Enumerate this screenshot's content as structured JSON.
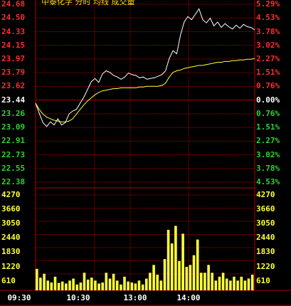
{
  "header_text": "中泰化学 分时 均线 成交量",
  "chart_data": {
    "type": "line",
    "prev_close": 23.44,
    "price_axis": [
      "24.68",
      "24.50",
      "24.33",
      "24.15",
      "23.97",
      "23.79",
      "23.62",
      "23.44",
      "23.26",
      "23.09",
      "22.91",
      "22.73",
      "22.55",
      "22.38"
    ],
    "pct_axis": [
      "5.29%",
      "4.53%",
      "3.78%",
      "3.02%",
      "2.27%",
      "1.51%",
      "0.76%",
      "0.00%",
      "0.76%",
      "1.51%",
      "2.27%",
      "3.02%",
      "3.78%",
      "4.53%"
    ],
    "price_range": [
      22.38,
      24.68
    ],
    "volume_axis": [
      "4270",
      "3660",
      "3050",
      "2440",
      "1830",
      "1220",
      "610"
    ],
    "volume_range": [
      0,
      4880
    ],
    "time_labels": [
      "09:30",
      "10:30",
      "13:00",
      "14:00"
    ],
    "series": [
      {
        "values": [
          23.4,
          23.27,
          23.15,
          23.1,
          23.16,
          23.12,
          23.2,
          23.12,
          23.15,
          23.26,
          23.3,
          23.32,
          23.4,
          23.48,
          23.58,
          23.68,
          23.72,
          23.67,
          23.78,
          23.82,
          23.8,
          23.76,
          23.74,
          23.71,
          23.74,
          23.79,
          23.77,
          23.76,
          23.73,
          23.74,
          23.71,
          23.72,
          23.73,
          23.75,
          23.77,
          23.82,
          23.98,
          24.08,
          24.04,
          24.28,
          24.45,
          24.52,
          24.48,
          24.55,
          24.62,
          24.48,
          24.44,
          24.5,
          24.4,
          24.45,
          24.38,
          24.43,
          24.39,
          24.36,
          24.41,
          24.37,
          24.42,
          24.39,
          24.38,
          24.35
        ]
      },
      {
        "values": [
          23.4,
          23.32,
          23.26,
          23.22,
          23.2,
          23.18,
          23.17,
          23.16,
          23.16,
          23.17,
          23.2,
          23.26,
          23.32,
          23.38,
          23.43,
          23.47,
          23.51,
          23.54,
          23.56,
          23.57,
          23.58,
          23.59,
          23.59,
          23.6,
          23.6,
          23.6,
          23.6,
          23.6,
          23.61,
          23.61,
          23.62,
          23.62,
          23.62,
          23.62,
          23.63,
          23.66,
          23.74,
          23.8,
          23.82,
          23.83,
          23.85,
          23.86,
          23.87,
          23.88,
          23.89,
          23.89,
          23.9,
          23.91,
          23.92,
          23.93,
          23.93,
          23.94,
          23.94,
          23.95,
          23.95,
          23.96,
          23.96,
          23.97,
          23.97,
          23.98
        ]
      }
    ],
    "volume": [
      1100,
      650,
      850,
      500,
      400,
      700,
      380,
      450,
      350,
      500,
      600,
      300,
      400,
      900,
      550,
      650,
      500,
      350,
      400,
      900,
      600,
      850,
      500,
      300,
      700,
      450,
      400,
      350,
      500,
      300,
      600,
      900,
      1300,
      800,
      500,
      1600,
      3100,
      2400,
      3300,
      1500,
      2900,
      1200,
      1300,
      1800,
      2600,
      900,
      900,
      1300,
      900,
      500,
      700,
      900,
      600,
      500,
      700,
      500,
      700,
      500,
      600,
      800
    ]
  },
  "colors": {
    "up": "#ff2d2d",
    "down": "#2cd42c",
    "price_line": "#ffffff",
    "avg_line": "#ffff3a",
    "volume_bar": "#ffff3a",
    "grid": "#b00000"
  }
}
